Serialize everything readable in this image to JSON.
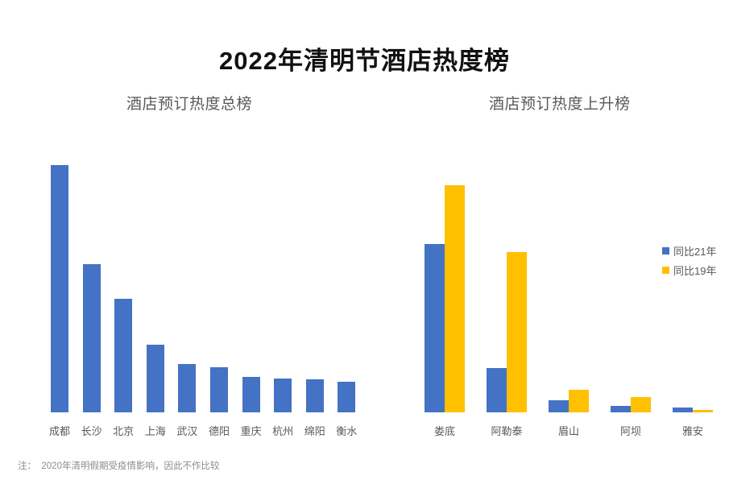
{
  "title": "2022年清明节酒店热度榜",
  "footnote": "注：  2020年清明假期受疫情影响，因此不作比较",
  "colors": {
    "bar_blue": "#4472C4",
    "bar_gold": "#FFC000",
    "title_text": "#111111",
    "label_gray": "#595959",
    "footnote_gray": "#8C8C8C"
  },
  "chart_data": [
    {
      "type": "bar",
      "title": "酒店预订热度总榜",
      "categories": [
        "成都",
        "长沙",
        "北京",
        "上海",
        "武汉",
        "德阳",
        "重庆",
        "杭州",
        "绵阳",
        "衡水"
      ],
      "values": [
        100,
        60,
        46,
        27.5,
        19.6,
        18.2,
        14.5,
        13.7,
        13.5,
        12.3
      ],
      "bar_color": "#4472C4",
      "xlabel": "",
      "ylabel": "",
      "units": "relative heat index estimated from bar heights (成都 = 100); no value axis shown",
      "grid": false,
      "value_axis_shown": false,
      "legend_position": "none"
    },
    {
      "type": "bar",
      "title": "酒店预订热度上升榜",
      "categories": [
        "娄底",
        "阿勒泰",
        "眉山",
        "阿坝",
        "雅安"
      ],
      "series": [
        {
          "name": "同比21年",
          "color": "#4472C4",
          "values": [
            74,
            19.5,
            5.3,
            2.8,
            2.1
          ]
        },
        {
          "name": "同比19年",
          "color": "#FFC000",
          "values": [
            100,
            70.5,
            10,
            6.8,
            0.9
          ]
        }
      ],
      "xlabel": "",
      "ylabel": "",
      "units": "relative growth index estimated from bar heights (娄底 同比19年 = 100); no value axis shown",
      "grid": false,
      "value_axis_shown": false,
      "legend_position": "right"
    }
  ]
}
